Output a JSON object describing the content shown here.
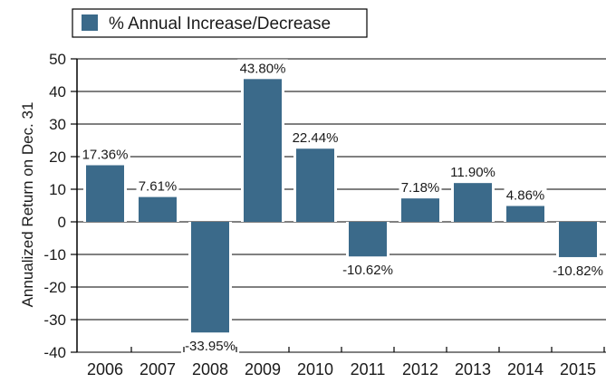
{
  "chart_data": {
    "type": "bar",
    "title": "",
    "xlabel": "",
    "ylabel": "Annualized Return on Dec. 31",
    "categories": [
      "2006",
      "2007",
      "2008",
      "2009",
      "2010",
      "2011",
      "2012",
      "2013",
      "2014",
      "2015"
    ],
    "series": [
      {
        "name": "% Annual Increase/Decrease",
        "values": [
          17.36,
          7.61,
          -33.95,
          43.8,
          22.44,
          -10.62,
          7.18,
          11.9,
          4.86,
          -10.82
        ],
        "labels": [
          "17.36%",
          "7.61%",
          "-33.95%",
          "43.80%",
          "22.44%",
          "-10.62%",
          "7.18%",
          "11.90%",
          "4.86%",
          "-10.82%"
        ]
      }
    ],
    "ylim": [
      -40,
      50
    ],
    "yticks": [
      50,
      40,
      30,
      20,
      10,
      0,
      -10,
      -20,
      -30,
      -40
    ],
    "grid": true,
    "legend_position": "top-left",
    "colors": {
      "bar": "#3b6a8a",
      "grid": "#000000",
      "text": "#1a1a1a"
    }
  }
}
